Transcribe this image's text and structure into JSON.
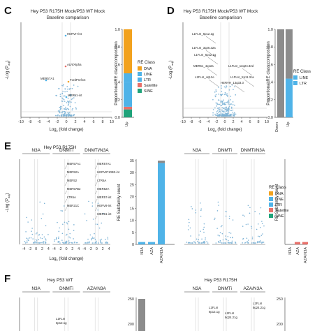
{
  "colors": {
    "DNA": "#F2A21E",
    "LINE": "#4FB3E8",
    "LTR": "#4FB3E8",
    "Satellite": "#E8706A",
    "SINE": "#1FA37A",
    "Unclassified": "#8C8C8C",
    "point": "#7DB3D6",
    "threshold": "#CCCCCC",
    "axis": "#555555"
  },
  "panels": {
    "C": {
      "letter": "C",
      "title1": "Hey P53 R175H Mock/P53 WT Mock",
      "title2": "Baseline comparison"
    },
    "D": {
      "letter": "D",
      "title1": "Hey P53 R175H Mock/P53 WT Mock",
      "title2": "Baseline comparison"
    },
    "E": {
      "letter": "E",
      "title": "Hey P53 R175H",
      "header1": "N3A",
      "header2": "DNMTi",
      "header3": "DNMTi/N3A"
    },
    "F": {
      "letter": "F",
      "title_left": "Hey P53 WT",
      "title_right": "Hey P53 R175H",
      "left_headers": [
        "N3A",
        "DNMTi",
        "AZA/N3A"
      ],
      "right_headers": [
        "N3A",
        "DNMTi",
        "AZA/N3A"
      ]
    }
  },
  "legend_C": {
    "title": "RE Class",
    "items": [
      "DNA",
      "LINE",
      "LTR",
      "Satellite",
      "SINE"
    ]
  },
  "legend_D": {
    "title": "RE Class",
    "items": [
      "LINE",
      "LTR"
    ]
  },
  "legend_E": {
    "title": "RE Class",
    "items": [
      "DNA",
      "LINE",
      "LTR",
      "Satellite",
      "SINE"
    ]
  },
  "axes": {
    "volcano_ylabel": "-Log (P",
    "volcano_ylabel_sub": "adj",
    "volcano_ylabel_end": ")",
    "volcano_xlabel": "Log",
    "volcano_xlabel_sub": "2",
    "volcano_xlabel_end": " (fold change)",
    "composition_ylabel": "Proportional RE class composition",
    "subfamily_ylabel": "RE Subfamily count"
  },
  "chart_data": [
    {
      "panel": "C",
      "type": "scatter",
      "xticks": [
        "-10",
        "-8",
        "-6",
        "-4",
        "-2",
        "0",
        "2",
        "4",
        "6",
        "8",
        "10"
      ],
      "xlim": [
        -10,
        10
      ],
      "annotations": [
        "HERVH-int",
        "ALR/Alpha",
        "MER57A1",
        "FordPrefect",
        "MER51-int"
      ]
    },
    {
      "panel": "C",
      "type": "bar",
      "stacked": true,
      "categories": [
        "Up"
      ],
      "yticks": [
        "0.0",
        "0.2",
        "0.4",
        "0.6",
        "0.8",
        "1.0"
      ],
      "series": [
        {
          "name": "SINE",
          "values": [
            0.09
          ]
        },
        {
          "name": "Satellite",
          "values": [
            0.03
          ]
        },
        {
          "name": "LTR",
          "values": [
            0.28
          ]
        },
        {
          "name": "LINE",
          "values": [
            0.1
          ]
        },
        {
          "name": "DNA",
          "values": [
            0.5
          ]
        }
      ]
    },
    {
      "panel": "D",
      "type": "scatter",
      "xticks": [
        "-10",
        "-8",
        "-6",
        "-4",
        "-2",
        "0",
        "2",
        "4",
        "6",
        "8",
        "10"
      ],
      "xlim": [
        -10,
        10
      ],
      "annotations": [
        "L1FLnI_6p12.1g",
        "L1FLnI_3q26.32a",
        "L1FLnI_6p12.1g",
        "MER61_4q12a",
        "L1FLnI_4q12e",
        "L1FLnI_12q24.32d",
        "L1FLnI_Xp11.3ca",
        "HERVH_13q33.3"
      ]
    },
    {
      "panel": "D",
      "type": "bar",
      "stacked": true,
      "categories": [
        "Down",
        "Up"
      ],
      "yticks": [
        "0.0",
        "0.2",
        "0.4",
        "0.6",
        "0.8",
        "1.0"
      ],
      "series": [
        {
          "name": "LTR",
          "values": [
            0,
            0.44
          ]
        },
        {
          "name": "Unclassified",
          "values": [
            1.0,
            0.56
          ]
        }
      ]
    },
    {
      "panel": "E",
      "type": "scatter",
      "xticks": [
        "-4",
        "-2",
        "0",
        "2",
        "4"
      ],
      "annotations_n3a": [],
      "annotations_dnmti": [
        "MER57A1",
        "MER52A",
        "MER52",
        "MER57B2",
        "LTR6A",
        "MER21C"
      ],
      "annotations_combo": [
        "MER57A1",
        "HERVIP10B3-int",
        "LTR6A",
        "MER52A",
        "MER57-int",
        "HERV8-int",
        "MER61-int"
      ]
    },
    {
      "panel": "E-WT",
      "type": "bar",
      "categories": [
        "N3A",
        "AZA",
        "AZA/N3A"
      ],
      "yticks": [
        "0",
        "5",
        "10",
        "15",
        "20",
        "25",
        "30",
        "35"
      ],
      "series": [
        {
          "name": "LTR",
          "values": [
            1,
            1,
            34
          ]
        },
        {
          "name": "Unclassified",
          "values": [
            0,
            0,
            1
          ]
        }
      ]
    },
    {
      "panel": "E-R175H",
      "type": "bar",
      "categories": [
        "N3A",
        "AZA",
        "AZA/N3A"
      ],
      "yticks": [
        "0",
        "5",
        "10",
        "15",
        "20",
        "25",
        "30",
        "35"
      ],
      "series": [
        {
          "name": "Satellite",
          "values": [
            0,
            1,
            1
          ]
        }
      ]
    },
    {
      "panel": "F",
      "type": "bar",
      "categories": [
        "N3A",
        "AZA",
        "AZA/N3A"
      ],
      "yticks": [
        "250",
        "200"
      ],
      "annotations_right": [
        "L1FLnI_6p12.1g",
        "L1FLnI_8q24.21g",
        "L1FLnI_8q24.21g"
      ]
    }
  ]
}
